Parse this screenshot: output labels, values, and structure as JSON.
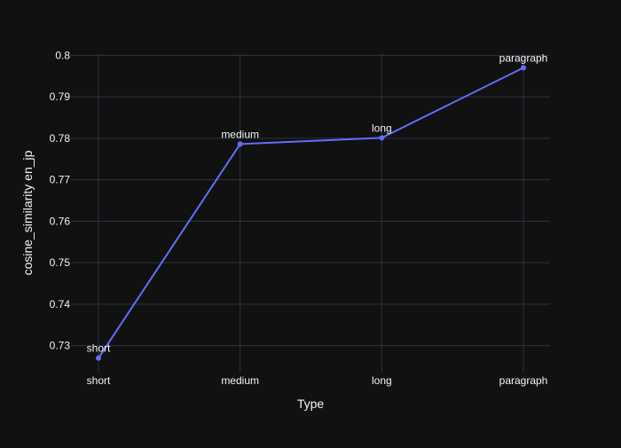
{
  "chart_data": {
    "type": "line",
    "categories": [
      "short",
      "medium",
      "long",
      "paragraph"
    ],
    "series": [
      {
        "values": [
          0.727,
          0.7786,
          0.7801,
          0.797
        ],
        "point_labels": [
          "short",
          "medium",
          "long",
          "paragraph"
        ],
        "color": "#636efa"
      }
    ],
    "title": "",
    "xlabel": "Type",
    "ylabel": "cosine_similarity en_jp",
    "ylim": [
      0.7235,
      0.8005
    ],
    "yticks": [
      0.73,
      0.74,
      0.75,
      0.76,
      0.77,
      0.78,
      0.79,
      0.8
    ],
    "ytick_labels": [
      "0.73",
      "0.74",
      "0.75",
      "0.76",
      "0.77",
      "0.78",
      "0.79",
      "0.8"
    ],
    "grid": true,
    "legend": "none"
  },
  "colors": {
    "background": "#111111",
    "grid": "#283442",
    "text": "#f2f5fa",
    "line": "#636efa"
  }
}
